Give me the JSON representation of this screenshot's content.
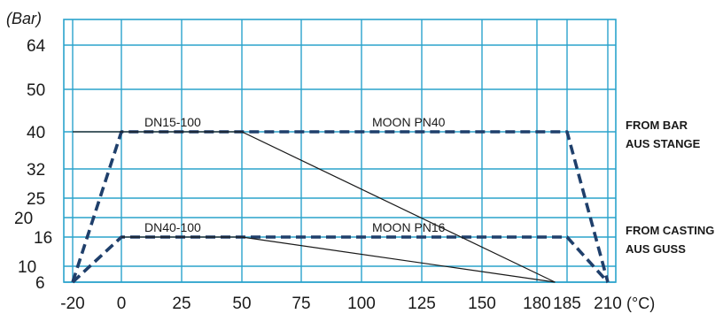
{
  "chart_data": {
    "type": "line",
    "units": {
      "y": "(Bar)",
      "x": "(°C)"
    },
    "x_ticks": [
      -20,
      0,
      25,
      50,
      75,
      100,
      125,
      150,
      180,
      185,
      210
    ],
    "y_ticks": [
      64,
      50,
      40,
      32,
      25,
      20,
      16,
      10,
      6
    ],
    "grid": true,
    "colors": {
      "grid": "#2aa3cc",
      "dashed": "#1f3f6b",
      "line": "#1a1a1a"
    },
    "series": [
      {
        "name": "DN15-100",
        "style": "dashed",
        "points": [
          [
            -20,
            6
          ],
          [
            0,
            40
          ],
          [
            50,
            40
          ],
          [
            185,
            40
          ],
          [
            210,
            6
          ]
        ]
      },
      {
        "name": "DN40-100",
        "style": "dashed",
        "points": [
          [
            -20,
            6
          ],
          [
            0,
            16
          ],
          [
            185,
            16
          ],
          [
            210,
            6
          ]
        ]
      },
      {
        "name": "MOON PN40",
        "style": "solid",
        "points": [
          [
            -20,
            40
          ],
          [
            50,
            40
          ],
          [
            180,
            6
          ]
        ]
      },
      {
        "name": "MOON PN16",
        "style": "solid",
        "points": [
          [
            0,
            16
          ],
          [
            50,
            16
          ],
          [
            180,
            6
          ]
        ]
      }
    ],
    "notes": [
      {
        "line1": "FROM BAR",
        "line2": "AUS STANGE",
        "y": 40
      },
      {
        "line1": "FROM CASTING",
        "line2": "AUS GUSS",
        "y": 16
      }
    ]
  }
}
